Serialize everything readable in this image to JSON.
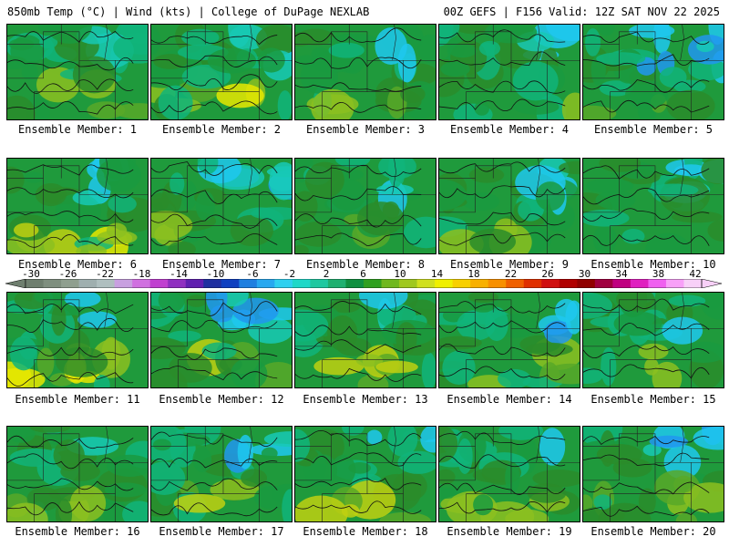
{
  "header": {
    "left": "850mb Temp (°C) | Wind (kts) | College of DuPage NEXLAB",
    "right": "00Z GEFS | F156 Valid: 12Z SAT NOV 22 2025"
  },
  "panels": [
    {
      "label": "Ensemble Member: 1"
    },
    {
      "label": "Ensemble Member: 2"
    },
    {
      "label": "Ensemble Member: 3"
    },
    {
      "label": "Ensemble Member: 4"
    },
    {
      "label": "Ensemble Member: 5"
    },
    {
      "label": "Ensemble Member: 6"
    },
    {
      "label": "Ensemble Member: 7"
    },
    {
      "label": "Ensemble Member: 8"
    },
    {
      "label": "Ensemble Member: 9"
    },
    {
      "label": "Ensemble Member: 10"
    },
    {
      "label": "Ensemble Member: 11"
    },
    {
      "label": "Ensemble Member: 12"
    },
    {
      "label": "Ensemble Member: 13"
    },
    {
      "label": "Ensemble Member: 14"
    },
    {
      "label": "Ensemble Member: 15"
    },
    {
      "label": "Ensemble Member: 16"
    },
    {
      "label": "Ensemble Member: 17"
    },
    {
      "label": "Ensemble Member: 18"
    },
    {
      "label": "Ensemble Member: 19"
    },
    {
      "label": "Ensemble Member: 20"
    }
  ],
  "colorbar": {
    "labels": [
      "-30",
      "-26",
      "-22",
      "-18",
      "-14",
      "-10",
      "-6",
      "-2",
      "2",
      "6",
      "10",
      "14",
      "18",
      "22",
      "26",
      "30",
      "34",
      "38",
      "42"
    ],
    "colors": [
      "#6f7f6f",
      "#7f8f7f",
      "#8f9f8f",
      "#9fafaf",
      "#afbfbf",
      "#c8a0e0",
      "#d070e0",
      "#c040d0",
      "#9030c0",
      "#6020b0",
      "#2030a0",
      "#1040c0",
      "#1f7fe0",
      "#28a8f0",
      "#30d0f0",
      "#20d8c8",
      "#20c8a0",
      "#20b070",
      "#109040",
      "#30a020",
      "#70b820",
      "#a0c820",
      "#d0e020",
      "#f0f000",
      "#f8d000",
      "#f8b000",
      "#f89000",
      "#f06000",
      "#e03000",
      "#d01010",
      "#b00000",
      "#900000",
      "#a00040",
      "#c00080",
      "#e020c0",
      "#f060f0",
      "#f8a0f8",
      "#f8d0f8"
    ]
  }
}
